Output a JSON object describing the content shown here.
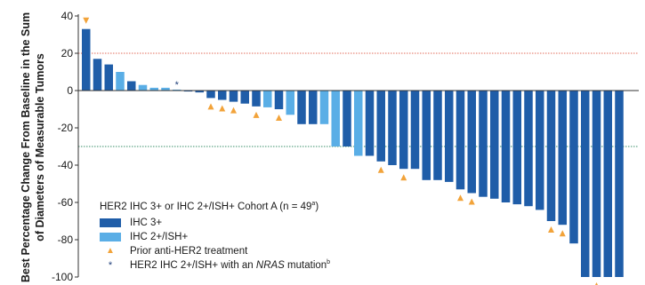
{
  "chart_data": {
    "type": "bar",
    "ylabel": "Best Percentage Change From Baseline in the Sum of Diameters of Measurable Tumors",
    "ylabel_lines": [
      "Best Percentage Change From Baseline in the Sum",
      "of Diameters of Measurable Tumors"
    ],
    "ylim": [
      -100,
      40
    ],
    "yticks": [
      "40",
      "20",
      "0",
      "-20",
      "-40",
      "-60",
      "-80",
      "-100"
    ],
    "reference_lines": [
      {
        "value": 20,
        "color": "#e26b5a",
        "style": "dotted"
      },
      {
        "value": -30,
        "color": "#3a8f6a",
        "style": "dotted"
      }
    ],
    "colors": {
      "ihc3": "#1f5da8",
      "ihc2": "#5aaee6",
      "prior": "#f2a33a",
      "nras": "#1f3f7a",
      "axis": "#333333"
    },
    "bars": [
      {
        "value": 33,
        "group": "ihc3",
        "prior": true
      },
      {
        "value": 17,
        "group": "ihc3"
      },
      {
        "value": 14,
        "group": "ihc3"
      },
      {
        "value": 10,
        "group": "ihc2"
      },
      {
        "value": 5,
        "group": "ihc3"
      },
      {
        "value": 3,
        "group": "ihc2"
      },
      {
        "value": 1.5,
        "group": "ihc2"
      },
      {
        "value": 1.5,
        "group": "ihc2"
      },
      {
        "value": 0.5,
        "group": "ihc2",
        "nras": true
      },
      {
        "value": -0.5,
        "group": "ihc3"
      },
      {
        "value": -1,
        "group": "ihc3"
      },
      {
        "value": -4,
        "group": "ihc3",
        "prior": true
      },
      {
        "value": -5,
        "group": "ihc3",
        "prior": true
      },
      {
        "value": -6,
        "group": "ihc3",
        "prior": true
      },
      {
        "value": -7,
        "group": "ihc3"
      },
      {
        "value": -8.5,
        "group": "ihc3",
        "prior": true
      },
      {
        "value": -9,
        "group": "ihc2"
      },
      {
        "value": -10,
        "group": "ihc3",
        "prior": true
      },
      {
        "value": -13,
        "group": "ihc2"
      },
      {
        "value": -18,
        "group": "ihc3"
      },
      {
        "value": -18,
        "group": "ihc3"
      },
      {
        "value": -18,
        "group": "ihc2"
      },
      {
        "value": -30,
        "group": "ihc2"
      },
      {
        "value": -30,
        "group": "ihc3"
      },
      {
        "value": -35,
        "group": "ihc2"
      },
      {
        "value": -35,
        "group": "ihc3"
      },
      {
        "value": -38,
        "group": "ihc3",
        "prior": true
      },
      {
        "value": -40,
        "group": "ihc3"
      },
      {
        "value": -42,
        "group": "ihc3",
        "prior": true
      },
      {
        "value": -42,
        "group": "ihc3"
      },
      {
        "value": -48,
        "group": "ihc3"
      },
      {
        "value": -48,
        "group": "ihc3"
      },
      {
        "value": -49,
        "group": "ihc3"
      },
      {
        "value": -53,
        "group": "ihc3",
        "prior": true
      },
      {
        "value": -55,
        "group": "ihc3",
        "prior": true
      },
      {
        "value": -57,
        "group": "ihc3"
      },
      {
        "value": -58,
        "group": "ihc3"
      },
      {
        "value": -60,
        "group": "ihc3"
      },
      {
        "value": -61,
        "group": "ihc3"
      },
      {
        "value": -62,
        "group": "ihc3"
      },
      {
        "value": -64,
        "group": "ihc3"
      },
      {
        "value": -70,
        "group": "ihc3",
        "prior": true
      },
      {
        "value": -72,
        "group": "ihc3",
        "prior": true
      },
      {
        "value": -82,
        "group": "ihc3"
      },
      {
        "value": -100,
        "group": "ihc3"
      },
      {
        "value": -100,
        "group": "ihc3",
        "prior": true
      },
      {
        "value": -100,
        "group": "ihc3"
      },
      {
        "value": -100,
        "group": "ihc3"
      }
    ]
  },
  "legend": {
    "title_main": "HER2 IHC 3+ or IHC 2+/ISH+ Cohort A (n = 49",
    "title_sup": "a",
    "title_end": ")",
    "ihc3": "IHC 3+",
    "ihc2": "IHC 2+/ISH+",
    "prior": "Prior anti-HER2 treatment",
    "nras_prefix": "HER2 IHC 2+/ISH+ with an ",
    "nras_gene": "NRAS",
    "nras_suffix": " mutation",
    "nras_sup": "b",
    "tri_symbol": "▲",
    "star_symbol": "*"
  }
}
